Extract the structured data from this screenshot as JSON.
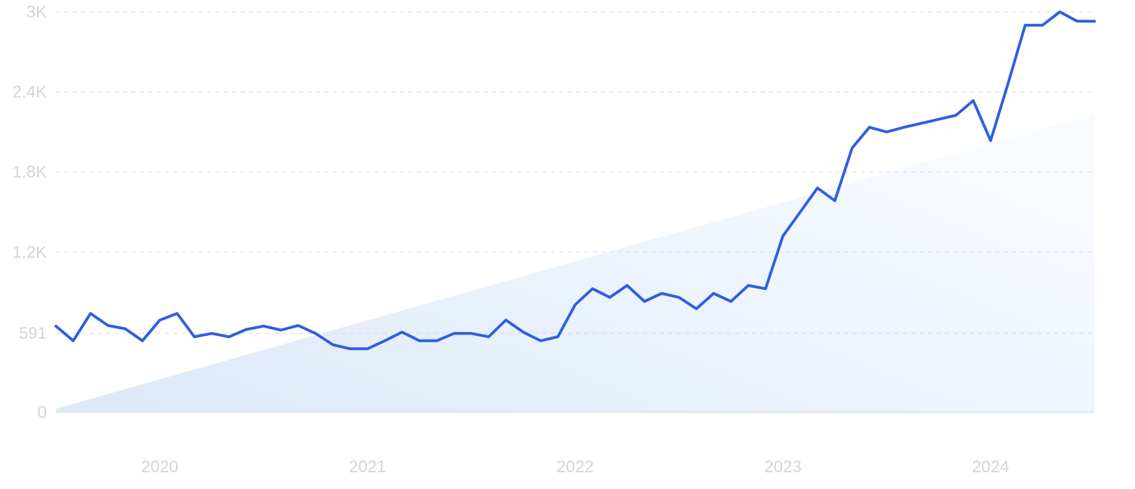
{
  "chart_data": {
    "type": "line",
    "title": "",
    "xlabel": "",
    "ylabel": "",
    "x_ticks": [
      {
        "date": "2020-01",
        "label": "2020"
      },
      {
        "date": "2021-01",
        "label": "2021"
      },
      {
        "date": "2022-01",
        "label": "2022"
      },
      {
        "date": "2023-01",
        "label": "2023"
      },
      {
        "date": "2024-01",
        "label": "2024"
      }
    ],
    "y_ticks": [
      {
        "value": 0,
        "label": "0"
      },
      {
        "value": 591,
        "label": "591"
      },
      {
        "value": 1200,
        "label": "1.2K"
      },
      {
        "value": 1800,
        "label": "1.8K"
      },
      {
        "value": 2400,
        "label": "2.4K"
      },
      {
        "value": 3000,
        "label": "3K"
      }
    ],
    "ylim": [
      0,
      3000
    ],
    "xlim": [
      "2019-07",
      "2024-07"
    ],
    "grid": true,
    "legend": "none",
    "colors": {
      "line": "#2f5fe0",
      "trend_area": "#dce8f8",
      "grid": "#d5dde8",
      "tick_text": "#d2d5dc"
    },
    "trend_area": {
      "x": [
        "2019-07",
        "2024-07"
      ],
      "values": [
        25,
        2235
      ]
    },
    "series": [
      {
        "x": [
          "2019-07",
          "2019-08",
          "2019-09",
          "2019-10",
          "2019-11",
          "2019-12",
          "2020-01",
          "2020-02",
          "2020-03",
          "2020-04",
          "2020-05",
          "2020-06",
          "2020-07",
          "2020-08",
          "2020-09",
          "2020-10",
          "2020-11",
          "2020-12",
          "2021-01",
          "2021-02",
          "2021-03",
          "2021-04",
          "2021-05",
          "2021-06",
          "2021-07",
          "2021-08",
          "2021-09",
          "2021-10",
          "2021-11",
          "2021-12",
          "2022-01",
          "2022-02",
          "2022-03",
          "2022-04",
          "2022-05",
          "2022-06",
          "2022-07",
          "2022-08",
          "2022-09",
          "2022-10",
          "2022-11",
          "2022-12",
          "2023-01",
          "2023-02",
          "2023-03",
          "2023-04",
          "2023-05",
          "2023-06",
          "2023-07",
          "2023-08",
          "2023-09",
          "2023-10",
          "2023-11",
          "2023-12",
          "2024-01",
          "2024-02",
          "2024-03",
          "2024-04",
          "2024-05",
          "2024-06",
          "2024-07"
        ],
        "values": [
          645,
          535,
          740,
          650,
          625,
          535,
          690,
          740,
          565,
          590,
          565,
          620,
          645,
          615,
          650,
          590,
          505,
          475,
          475,
          535,
          600,
          535,
          535,
          590,
          590,
          565,
          690,
          600,
          535,
          565,
          805,
          925,
          860,
          950,
          830,
          890,
          860,
          775,
          890,
          830,
          950,
          925,
          1320,
          1500,
          1680,
          1585,
          1980,
          2135,
          2100,
          2135,
          2165,
          2195,
          2225,
          2335,
          2035,
          2460,
          2900,
          2900,
          3000,
          2930,
          2930
        ]
      }
    ]
  }
}
